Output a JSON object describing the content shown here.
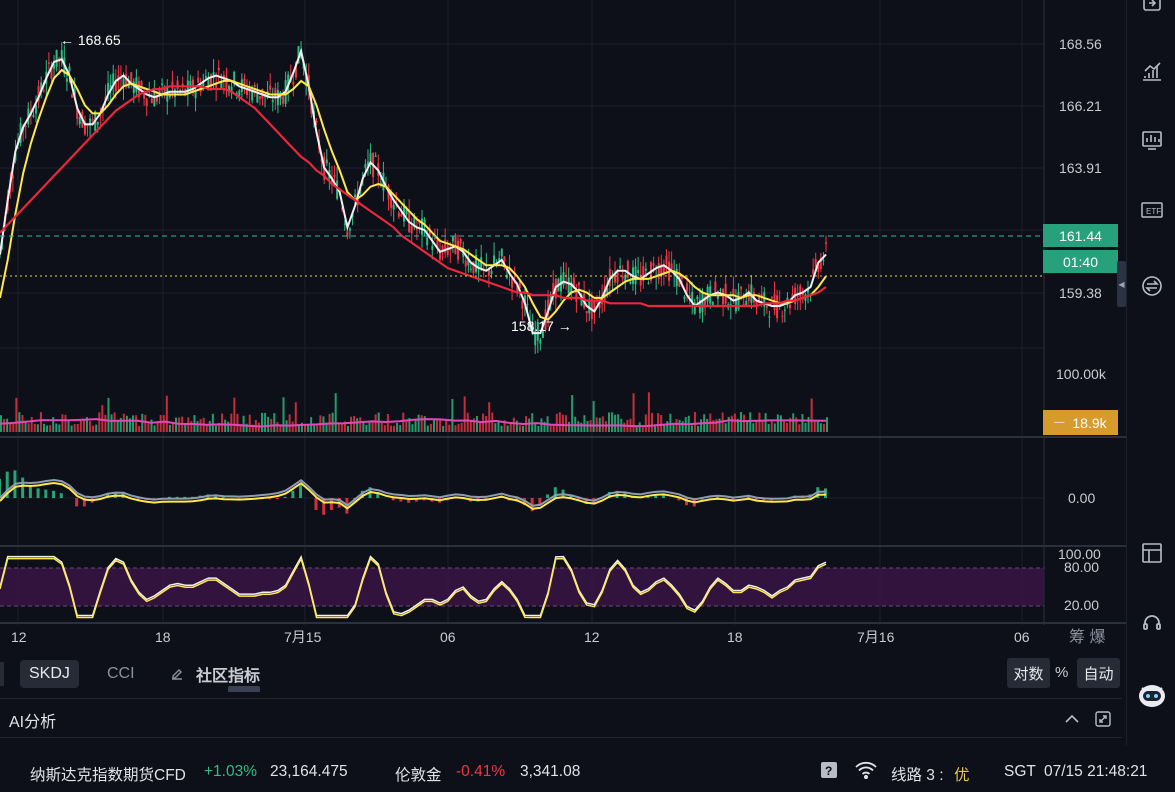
{
  "chart_data": {
    "type": "candlestick",
    "price_axis": {
      "ticks": [
        "168.56",
        "166.21",
        "163.91",
        "159.38"
      ],
      "current_price": "161.44",
      "countdown": "01:40",
      "annotations": [
        "← 168.65",
        "158.17 →"
      ]
    },
    "x_axis_ticks": [
      "12",
      "18",
      "7月15",
      "06",
      "12",
      "18",
      "7月16",
      "06"
    ],
    "moving_averages": [
      {
        "color": "#f0f0f0",
        "values": [
          160.8,
          162.8,
          164.6,
          165.5,
          166.0,
          166.6,
          167.3,
          167.9,
          168.0,
          167.4,
          166.2,
          165.6,
          165.6,
          166.0,
          166.7,
          167.2,
          167.4,
          167.1,
          166.9,
          166.7,
          166.6,
          166.7,
          166.8,
          166.8,
          166.8,
          166.9,
          167.1,
          167.3,
          167.4,
          167.3,
          167.2,
          167.0,
          166.9,
          166.8,
          166.7,
          166.6,
          166.6,
          166.8,
          167.5,
          168.3,
          167.0,
          165.3,
          164.0,
          163.6,
          163.1,
          161.8,
          162.6,
          163.6,
          164.2,
          163.9,
          163.3,
          162.8,
          162.4,
          162.0,
          161.8,
          161.7,
          161.3,
          160.9,
          161.0,
          161.1,
          160.9,
          160.5,
          160.3,
          160.2,
          160.4,
          160.6,
          160.1,
          159.7,
          159.0,
          157.9,
          157.9,
          158.7,
          159.6,
          159.8,
          159.7,
          159.4,
          158.9,
          158.7,
          159.2,
          159.9,
          160.2,
          160.2,
          160.0,
          159.9,
          160.1,
          160.3,
          160.4,
          160.2,
          159.9,
          159.3,
          158.9,
          159.1,
          159.3,
          159.4,
          159.3,
          159.1,
          159.2,
          159.4,
          159.1,
          159.0,
          158.9,
          158.9,
          159.0,
          159.3,
          159.4,
          159.6,
          160.5,
          160.8
        ]
      },
      {
        "color": "#ffe84d",
        "values": [
          159.2,
          160.6,
          162.3,
          163.8,
          164.9,
          165.8,
          166.6,
          167.3,
          167.6,
          167.4,
          166.9,
          166.3,
          166.0,
          166.0,
          166.3,
          166.7,
          167.0,
          167.1,
          167.0,
          166.9,
          166.8,
          166.7,
          166.7,
          166.7,
          166.7,
          166.8,
          166.9,
          167.0,
          167.1,
          167.2,
          167.2,
          167.1,
          167.0,
          166.9,
          166.8,
          166.7,
          166.7,
          166.7,
          166.9,
          167.2,
          167.0,
          166.3,
          165.4,
          164.6,
          163.9,
          163.1,
          162.8,
          163.0,
          163.3,
          163.4,
          163.3,
          163.0,
          162.7,
          162.4,
          162.1,
          161.9,
          161.6,
          161.3,
          161.2,
          161.1,
          161.0,
          160.8,
          160.6,
          160.4,
          160.4,
          160.4,
          160.3,
          160.0,
          159.6,
          159.0,
          158.5,
          158.4,
          158.7,
          159.1,
          159.4,
          159.5,
          159.4,
          159.2,
          159.2,
          159.4,
          159.6,
          159.8,
          159.9,
          159.9,
          159.9,
          160.0,
          160.1,
          160.2,
          160.1,
          159.9,
          159.6,
          159.4,
          159.3,
          159.3,
          159.3,
          159.3,
          159.2,
          159.3,
          159.3,
          159.2,
          159.1,
          159.0,
          159.0,
          159.1,
          159.2,
          159.3,
          159.6,
          160.0
        ]
      },
      {
        "color": "#e8283c",
        "values": [
          161.6,
          161.9,
          162.2,
          162.5,
          162.8,
          163.1,
          163.4,
          163.7,
          164.0,
          164.3,
          164.6,
          164.9,
          165.2,
          165.5,
          165.8,
          166.1,
          166.3,
          166.5,
          166.7,
          166.8,
          166.9,
          166.9,
          167.0,
          167.0,
          167.0,
          167.0,
          167.0,
          166.9,
          166.9,
          166.9,
          166.8,
          166.6,
          166.4,
          166.2,
          165.9,
          165.6,
          165.3,
          165.0,
          164.7,
          164.4,
          164.2,
          163.9,
          163.7,
          163.4,
          163.2,
          163.0,
          162.8,
          162.6,
          162.4,
          162.2,
          162.0,
          161.8,
          161.5,
          161.3,
          161.1,
          160.9,
          160.7,
          160.5,
          160.3,
          160.2,
          160.1,
          160.0,
          159.9,
          159.8,
          159.7,
          159.6,
          159.5,
          159.4,
          159.4,
          159.3,
          159.3,
          159.3,
          159.3,
          159.2,
          159.2,
          159.2,
          159.1,
          159.1,
          159.1,
          159.0,
          159.0,
          159.0,
          159.0,
          159.0,
          158.9,
          158.9,
          158.9,
          158.9,
          158.9,
          158.9,
          158.9,
          158.9,
          158.9,
          158.9,
          158.9,
          158.9,
          158.9,
          158.9,
          158.9,
          159.0,
          159.0,
          159.0,
          159.1,
          159.1,
          159.2,
          159.3,
          159.4,
          159.6
        ]
      }
    ],
    "volume": {
      "ticks": [
        "100.00k"
      ],
      "current": "18.9k"
    },
    "macd": {
      "ticks": [
        "0.00"
      ]
    },
    "kdj": {
      "ticks": [
        "100.00",
        "80.00",
        "20.00"
      ]
    }
  },
  "bottom_tabs": {
    "skdj": "SKDJ",
    "cci": "CCI",
    "community": "社区指标",
    "log": "对数",
    "percent": "%",
    "auto": "自动"
  },
  "ai_panel": {
    "title": "AI分析"
  },
  "status": {
    "item1_name": "纳斯达克指数期货CFD",
    "item1_change": "+1.03%",
    "item1_price": "23,164.475",
    "item2_name": "伦敦金",
    "item2_change": "-0.41%",
    "item2_price": "3,341.08",
    "line_label": "线路 3 :",
    "line_quality": "优",
    "timezone": "SGT",
    "datetime": "07/15 21:48:21"
  },
  "colors": {
    "background": "#0d1018",
    "up": "#2ebd85",
    "down": "#f23645",
    "price_tag": "#26a17b",
    "volume_tag": "#d69a2d"
  },
  "icons": [
    "export-icon",
    "trend-chart-icon",
    "indicator-icon",
    "etf-icon",
    "swap-icon",
    "layout-icon",
    "support-icon",
    "assistant-robot-icon",
    "ai-collapse-icon",
    "ai-expand-icon",
    "help-icon",
    "wifi-icon"
  ]
}
